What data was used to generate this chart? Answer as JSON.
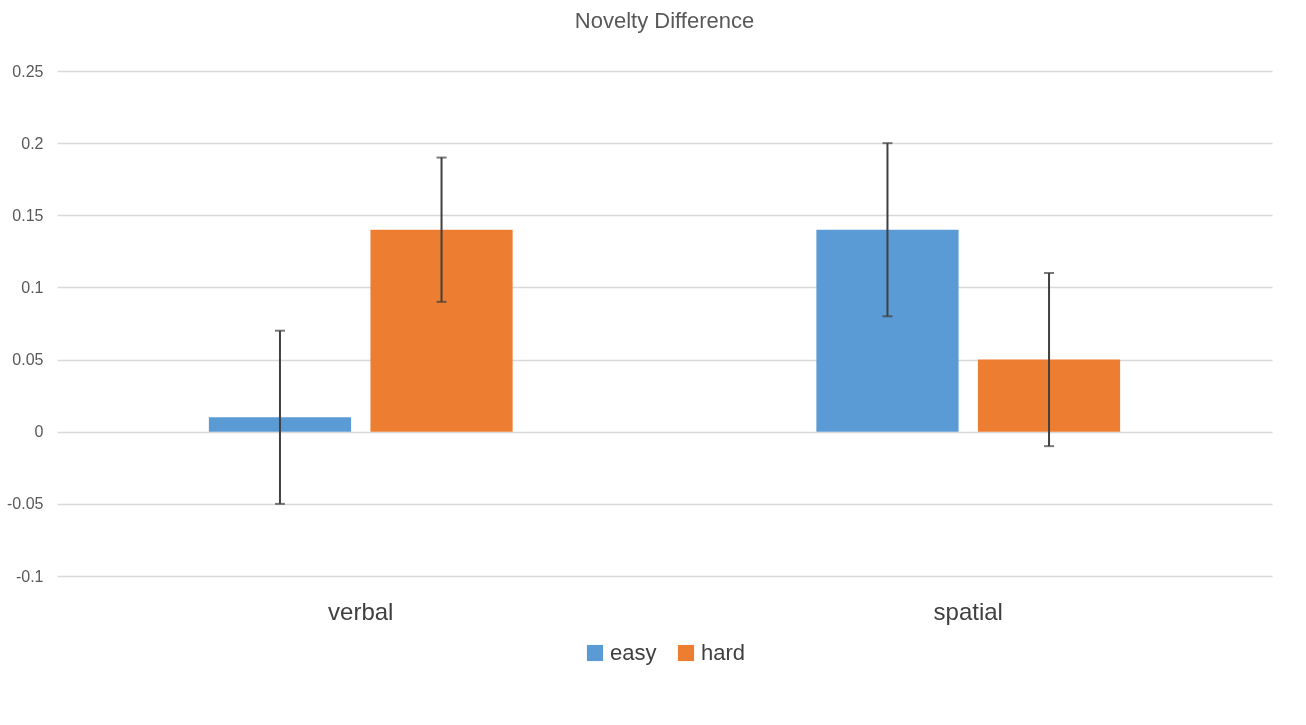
{
  "chart_data": {
    "type": "bar",
    "title": "Novelty Difference",
    "categories": [
      "verbal",
      "spatial"
    ],
    "series": [
      {
        "name": "easy",
        "color": "#5b9bd5",
        "values": [
          0.01,
          0.14
        ],
        "errors": [
          0.06,
          0.06
        ]
      },
      {
        "name": "hard",
        "color": "#ed7d31",
        "values": [
          0.14,
          0.05
        ],
        "errors": [
          0.05,
          0.06
        ]
      }
    ],
    "ylim": [
      -0.1,
      0.25
    ],
    "yticks": [
      -0.1,
      -0.05,
      0,
      0.05,
      0.1,
      0.15,
      0.2,
      0.25
    ],
    "grid": "y",
    "legend": "bottom"
  }
}
